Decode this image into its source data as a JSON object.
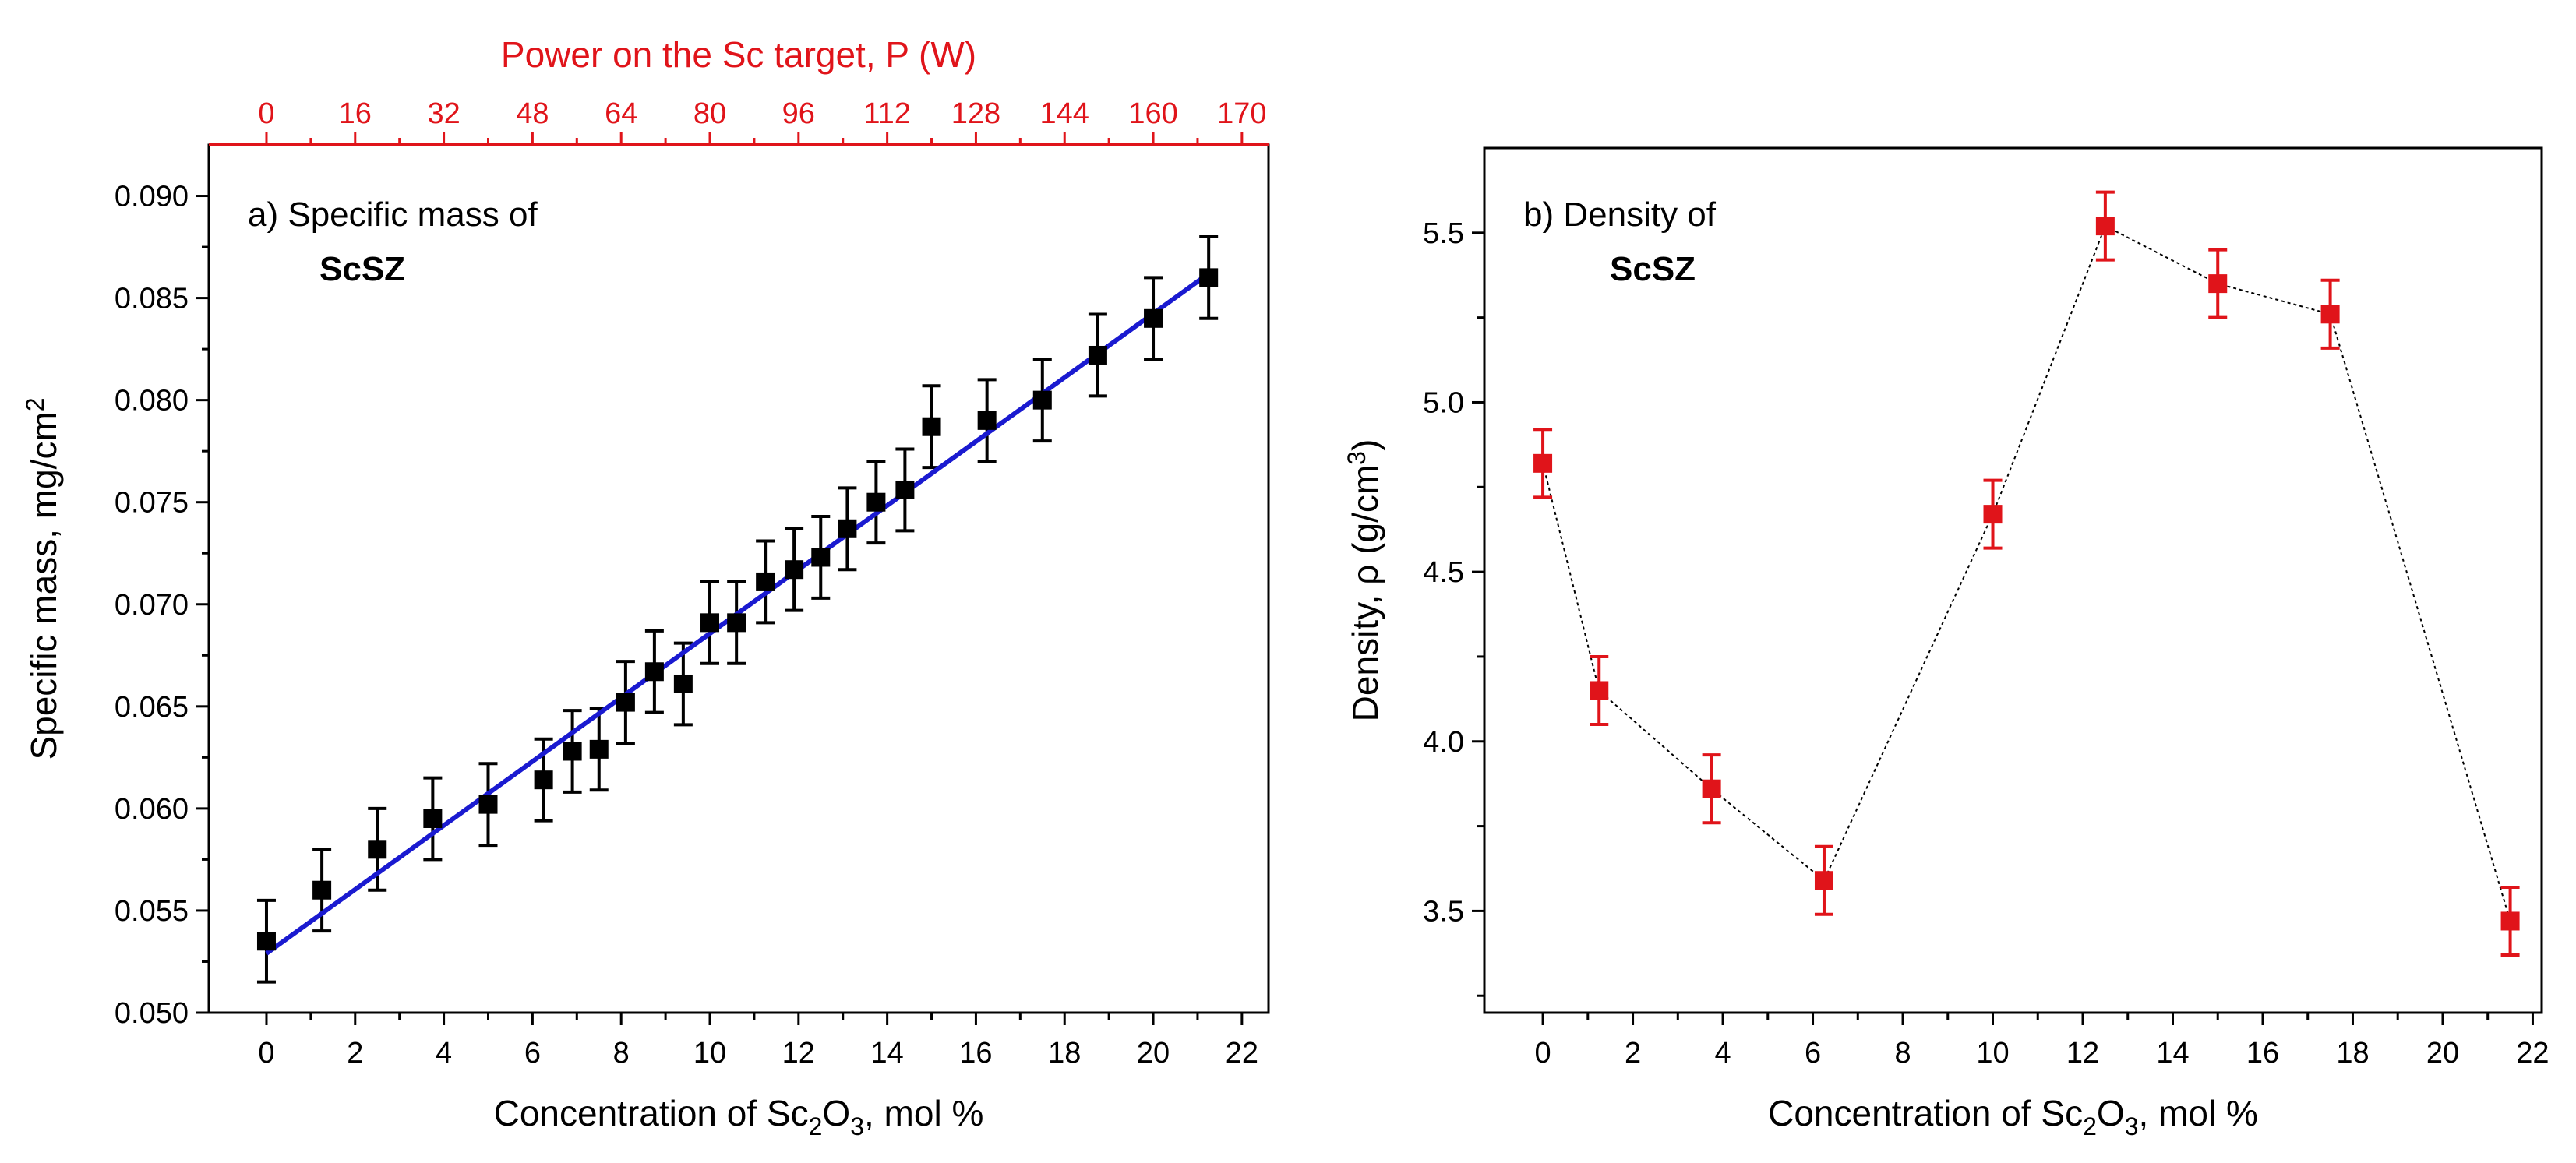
{
  "colors": {
    "axis": "#000000",
    "top_axis": "#e0141a",
    "fit_line": "#1a1ad0",
    "left_markers": "#000000",
    "right_markers": "#e0141a",
    "right_line": "#000000"
  },
  "chart_data": [
    {
      "type": "scatter",
      "title_prefix": "a) Specific mass of",
      "title_bold": "ScSZ",
      "xlabel": {
        "pre": "Concentration of Sc",
        "sub1": "2",
        "mid": "O",
        "sub2": "3",
        "post": ", mol %"
      },
      "ylabel": {
        "pre": "Specific mass, mg/cm",
        "sup": "2"
      },
      "top_xlabel": "Power on the Sc target, P (W)",
      "xlim": [
        -1.3,
        22.6
      ],
      "ylim": [
        0.05,
        0.0925
      ],
      "xticks": [
        0,
        2,
        4,
        6,
        8,
        10,
        12,
        14,
        16,
        18,
        20,
        22
      ],
      "yticks": [
        0.05,
        0.055,
        0.06,
        0.065,
        0.07,
        0.075,
        0.08,
        0.085,
        0.09
      ],
      "ytick_labels": [
        "0.050",
        "0.055",
        "0.060",
        "0.065",
        "0.070",
        "0.075",
        "0.080",
        "0.085",
        "0.090"
      ],
      "top_ticks": [
        {
          "label": "0",
          "x": 0
        },
        {
          "label": "16",
          "x": 2
        },
        {
          "label": "32",
          "x": 4
        },
        {
          "label": "48",
          "x": 6
        },
        {
          "label": "64",
          "x": 8
        },
        {
          "label": "80",
          "x": 10
        },
        {
          "label": "96",
          "x": 12
        },
        {
          "label": "112",
          "x": 14
        },
        {
          "label": "128",
          "x": 16
        },
        {
          "label": "144",
          "x": 18
        },
        {
          "label": "160",
          "x": 20
        },
        {
          "label": "170",
          "x": 22
        }
      ],
      "series": [
        {
          "name": "Specific mass",
          "marker": "square",
          "x": [
            0,
            1.25,
            2.5,
            3.75,
            5.0,
            6.25,
            6.9,
            7.5,
            8.1,
            8.75,
            9.4,
            10.0,
            10.6,
            11.25,
            11.9,
            12.5,
            13.1,
            13.75,
            14.4,
            15.0,
            16.25,
            17.5,
            18.75,
            20.0,
            21.25
          ],
          "y": [
            0.0535,
            0.056,
            0.058,
            0.0595,
            0.0602,
            0.0614,
            0.0628,
            0.0629,
            0.0652,
            0.0667,
            0.0661,
            0.0691,
            0.0691,
            0.0711,
            0.0717,
            0.0723,
            0.0737,
            0.075,
            0.0756,
            0.0787,
            0.079,
            0.08,
            0.0822,
            0.084,
            0.086
          ],
          "err": 0.002
        }
      ],
      "fit": {
        "x": [
          0,
          21.25
        ],
        "y": [
          0.0529,
          0.0862
        ]
      }
    },
    {
      "type": "line",
      "title_prefix": "b) Density of",
      "title_bold": "ScSZ",
      "xlabel": {
        "pre": "Concentration of Sc",
        "sub1": "2",
        "mid": "O",
        "sub2": "3",
        "post": ", mol %"
      },
      "ylabel": {
        "pre": "Density, ρ (g/cm",
        "sup": "3",
        "post": ")"
      },
      "xlim": [
        -1.3,
        22.2
      ],
      "ylim": [
        3.2,
        5.75
      ],
      "xticks": [
        0,
        2,
        4,
        6,
        8,
        10,
        12,
        14,
        16,
        18,
        20,
        22
      ],
      "yticks": [
        3.5,
        4.0,
        4.5,
        5.0,
        5.5
      ],
      "ytick_labels": [
        "3.5",
        "4.0",
        "4.5",
        "5.0",
        "5.5"
      ],
      "series": [
        {
          "name": "Density",
          "marker": "square",
          "x": [
            0,
            1.25,
            3.75,
            6.25,
            10.0,
            12.5,
            15.0,
            17.5,
            21.5
          ],
          "y": [
            4.82,
            4.15,
            3.86,
            3.59,
            4.67,
            5.52,
            5.35,
            5.26,
            3.47
          ],
          "err": 0.1
        }
      ]
    }
  ]
}
